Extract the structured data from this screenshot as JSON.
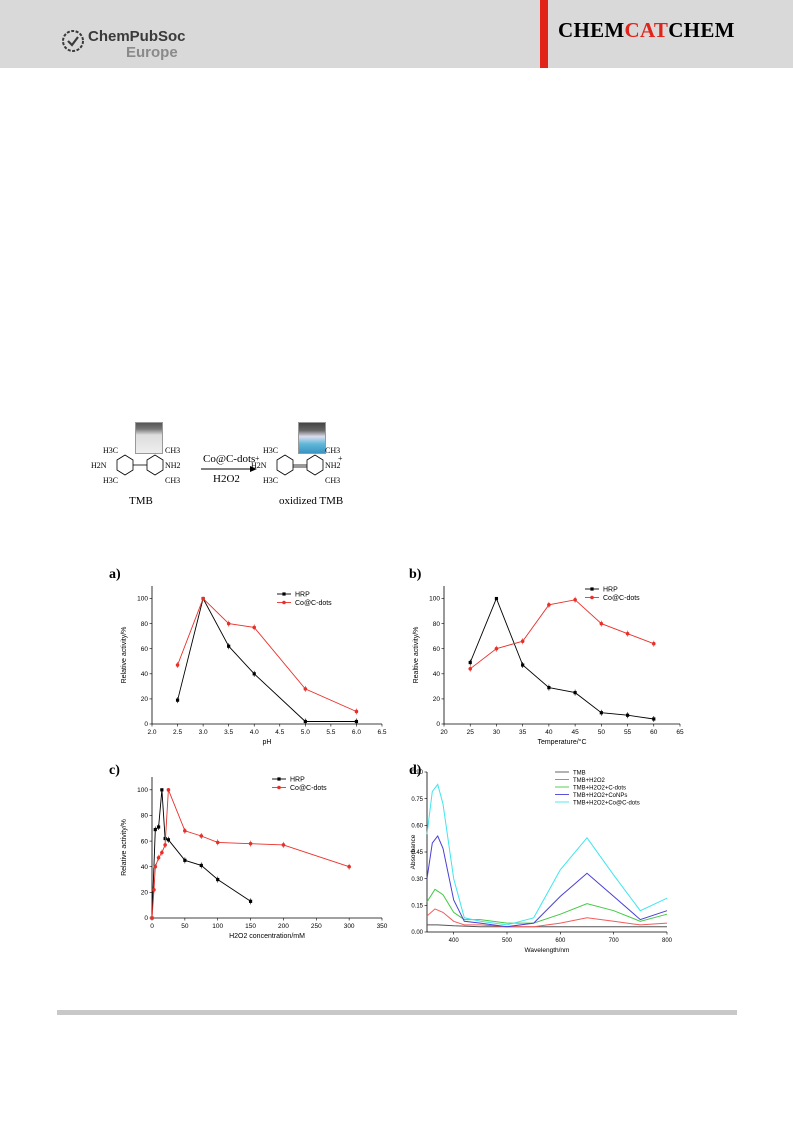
{
  "header": {
    "left_logo": {
      "name": "ChemPubSoc",
      "sub": "Europe"
    },
    "right_logo": {
      "part1": "CHEM",
      "part2": "CAT",
      "part3": "CHEM"
    },
    "colors": {
      "band": "#d9d9d9",
      "accent": "#e2231a"
    }
  },
  "scheme": {
    "reactant_label": "TMB",
    "product_label": "oxidized  TMB",
    "arrow_top": "Co@C-dots",
    "arrow_bottom": "H2O2",
    "reactant_groups": {
      "tl": "H3C",
      "tr": "CH3",
      "bl": "H3C",
      "br": "CH3",
      "left": "H2N",
      "right": "NH2"
    },
    "product_groups": {
      "tl": "H3C",
      "tr": "CH3",
      "bl": "H3C",
      "br": "CH3",
      "left": "H2N",
      "right": "NH2",
      "plus": "+"
    }
  },
  "chart_data": [
    {
      "panel": "a)",
      "type": "line",
      "xlabel": "pH",
      "ylabel": "Relative activity/%",
      "xlim": [
        2.0,
        6.5
      ],
      "ylim": [
        0,
        110
      ],
      "xticks": [
        "2.0",
        "2.5",
        "3.0",
        "3.5",
        "4.0",
        "4.5",
        "5.0",
        "5.5",
        "6.0",
        "6.5"
      ],
      "yticks": [
        "0",
        "20",
        "40",
        "60",
        "80",
        "100"
      ],
      "legend_position": "top-right",
      "series": [
        {
          "name": "HRP",
          "color": "#000000",
          "marker": "square",
          "x": [
            2.5,
            3.0,
            3.5,
            4.0,
            5.0,
            6.0
          ],
          "y": [
            19,
            100,
            62,
            40,
            2,
            2
          ]
        },
        {
          "name": "Co@C-dots",
          "color": "#e8302a",
          "marker": "circle",
          "x": [
            2.5,
            3.0,
            3.5,
            4.0,
            5.0,
            6.0
          ],
          "y": [
            47,
            100,
            80,
            77,
            28,
            10
          ]
        }
      ]
    },
    {
      "panel": "b)",
      "type": "line",
      "xlabel": "Temperature/°C",
      "ylabel": "Realtive activity/%",
      "xlim": [
        20,
        65
      ],
      "ylim": [
        0,
        110
      ],
      "xticks": [
        "20",
        "25",
        "30",
        "35",
        "40",
        "45",
        "50",
        "55",
        "60",
        "65"
      ],
      "yticks": [
        "0",
        "20",
        "40",
        "60",
        "80",
        "100"
      ],
      "legend_position": "top-right",
      "series": [
        {
          "name": "HRP",
          "color": "#000000",
          "marker": "square",
          "x": [
            25,
            30,
            35,
            40,
            45,
            50,
            55,
            60
          ],
          "y": [
            49,
            100,
            47,
            29,
            25,
            9,
            7,
            4
          ]
        },
        {
          "name": "Co@C-dots",
          "color": "#e8302a",
          "marker": "circle",
          "x": [
            25,
            30,
            35,
            40,
            45,
            50,
            55,
            60
          ],
          "y": [
            44,
            60,
            66,
            95,
            99,
            80,
            72,
            64
          ]
        }
      ]
    },
    {
      "panel": "c)",
      "type": "line",
      "xlabel": "H2O2 concentration/mM",
      "ylabel": "Relative activity/%",
      "xlim": [
        0,
        350
      ],
      "ylim": [
        0,
        110
      ],
      "xticks": [
        "0",
        "50",
        "100",
        "150",
        "200",
        "250",
        "300",
        "350"
      ],
      "yticks": [
        "0",
        "20",
        "40",
        "60",
        "80",
        "100"
      ],
      "legend_position": "top-right",
      "series": [
        {
          "name": "HRP",
          "color": "#000000",
          "marker": "square",
          "x": [
            0,
            5,
            10,
            15,
            20,
            25,
            50,
            75,
            100,
            150
          ],
          "y": [
            0,
            69,
            71,
            100,
            62,
            61,
            45,
            41,
            30,
            13
          ]
        },
        {
          "name": "Co@C-dots",
          "color": "#e8302a",
          "marker": "circle",
          "x": [
            0,
            3,
            5,
            10,
            15,
            20,
            25,
            50,
            75,
            100,
            150,
            200,
            300
          ],
          "y": [
            0,
            22,
            40,
            47,
            51,
            57,
            100,
            68,
            64,
            59,
            58,
            57,
            40
          ]
        }
      ]
    },
    {
      "panel": "d)",
      "type": "line",
      "xlabel": "Wavelength/nm",
      "ylabel": "Absorbance",
      "xlim": [
        350,
        800
      ],
      "ylim": [
        0,
        0.9
      ],
      "xticks": [
        "400",
        "500",
        "600",
        "700",
        "800"
      ],
      "yticks": [
        "0.00",
        "0.15",
        "0.30",
        "0.45",
        "0.60",
        "0.75",
        "0.90"
      ],
      "legend_position": "top-right",
      "series": [
        {
          "name": "TMB",
          "color": "#555555",
          "x": [
            350,
            370,
            400,
            450,
            500,
            550,
            600,
            650,
            700,
            750,
            800
          ],
          "y": [
            0.04,
            0.04,
            0.035,
            0.03,
            0.03,
            0.03,
            0.03,
            0.03,
            0.03,
            0.03,
            0.03
          ]
        },
        {
          "name": "TMB+H2O2",
          "color": "#f25c5c",
          "x": [
            350,
            365,
            380,
            400,
            420,
            450,
            500,
            550,
            600,
            650,
            700,
            750,
            800
          ],
          "y": [
            0.09,
            0.13,
            0.11,
            0.06,
            0.04,
            0.04,
            0.03,
            0.03,
            0.05,
            0.08,
            0.06,
            0.04,
            0.05
          ]
        },
        {
          "name": "TMB+H2O2+C-dots",
          "color": "#45c845",
          "x": [
            350,
            365,
            380,
            400,
            420,
            450,
            500,
            550,
            600,
            650,
            700,
            750,
            800
          ],
          "y": [
            0.17,
            0.24,
            0.21,
            0.11,
            0.07,
            0.07,
            0.05,
            0.05,
            0.1,
            0.16,
            0.12,
            0.06,
            0.1
          ]
        },
        {
          "name": "TMB+H2O2+CoNPs",
          "color": "#4a3fd6",
          "x": [
            350,
            360,
            370,
            380,
            400,
            420,
            450,
            500,
            550,
            600,
            650,
            700,
            750,
            800
          ],
          "y": [
            0.3,
            0.5,
            0.54,
            0.47,
            0.18,
            0.06,
            0.05,
            0.03,
            0.05,
            0.2,
            0.33,
            0.2,
            0.07,
            0.12
          ]
        },
        {
          "name": "TMB+H2O2+Co@C-dots",
          "color": "#3ee6ee",
          "x": [
            350,
            360,
            370,
            380,
            400,
            420,
            450,
            500,
            550,
            600,
            650,
            700,
            750,
            800
          ],
          "y": [
            0.55,
            0.79,
            0.83,
            0.72,
            0.3,
            0.08,
            0.06,
            0.04,
            0.08,
            0.35,
            0.53,
            0.32,
            0.12,
            0.19
          ]
        }
      ]
    }
  ]
}
